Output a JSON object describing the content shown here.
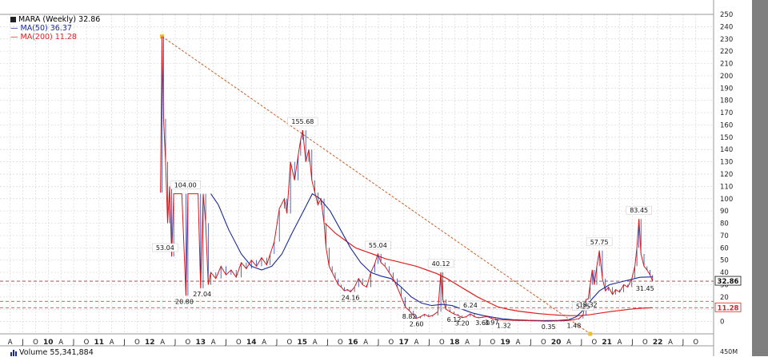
{
  "chart_data": {
    "type": "line",
    "title": "MARA (Weekly) 32.86",
    "legend": [
      {
        "name": "MA(50) 36.37",
        "color": "#1a2a9a"
      },
      {
        "name": "MA(200) 11.28",
        "color": "#e02020"
      }
    ],
    "price_color": "#d41a1a",
    "y_ticks": [
      "0",
      "10",
      "20",
      "30",
      "40",
      "50",
      "60",
      "70",
      "80",
      "90",
      "100",
      "110",
      "120",
      "130",
      "140",
      "150",
      "160",
      "170",
      "180",
      "190",
      "200",
      "210",
      "220",
      "230",
      "240",
      "250"
    ],
    "ylim": [
      -10,
      250
    ],
    "x_ticks": [
      {
        "t": 2009.0,
        "l": "A"
      },
      {
        "t": 2009.25,
        "l": "J"
      },
      {
        "t": 2009.5,
        "l": "O"
      },
      {
        "t": 2009.75,
        "l": "10"
      },
      {
        "t": 2010.0,
        "l": "A"
      },
      {
        "t": 2010.25,
        "l": "J"
      },
      {
        "t": 2010.5,
        "l": "O"
      },
      {
        "t": 2010.75,
        "l": "11"
      },
      {
        "t": 2011.0,
        "l": "A"
      },
      {
        "t": 2011.25,
        "l": "J"
      },
      {
        "t": 2011.5,
        "l": "O"
      },
      {
        "t": 2011.75,
        "l": "12"
      },
      {
        "t": 2012.0,
        "l": "A"
      },
      {
        "t": 2012.25,
        "l": "J"
      },
      {
        "t": 2012.5,
        "l": "O"
      },
      {
        "t": 2012.75,
        "l": "13"
      },
      {
        "t": 2013.0,
        "l": "A"
      },
      {
        "t": 2013.25,
        "l": "J"
      },
      {
        "t": 2013.5,
        "l": "O"
      },
      {
        "t": 2013.75,
        "l": "14"
      },
      {
        "t": 2014.0,
        "l": "A"
      },
      {
        "t": 2014.25,
        "l": "J"
      },
      {
        "t": 2014.5,
        "l": "O"
      },
      {
        "t": 2014.75,
        "l": "15"
      },
      {
        "t": 2015.0,
        "l": "A"
      },
      {
        "t": 2015.25,
        "l": "J"
      },
      {
        "t": 2015.5,
        "l": "O"
      },
      {
        "t": 2015.75,
        "l": "16"
      },
      {
        "t": 2016.0,
        "l": "A"
      },
      {
        "t": 2016.25,
        "l": "J"
      },
      {
        "t": 2016.5,
        "l": "O"
      },
      {
        "t": 2016.75,
        "l": "17"
      },
      {
        "t": 2017.0,
        "l": "A"
      },
      {
        "t": 2017.25,
        "l": "J"
      },
      {
        "t": 2017.5,
        "l": "O"
      },
      {
        "t": 2017.75,
        "l": "18"
      },
      {
        "t": 2018.0,
        "l": "A"
      },
      {
        "t": 2018.25,
        "l": "J"
      },
      {
        "t": 2018.5,
        "l": "O"
      },
      {
        "t": 2018.75,
        "l": "19"
      },
      {
        "t": 2019.0,
        "l": "A"
      },
      {
        "t": 2019.25,
        "l": "J"
      },
      {
        "t": 2019.5,
        "l": "O"
      },
      {
        "t": 2019.75,
        "l": "20"
      },
      {
        "t": 2020.0,
        "l": "A"
      },
      {
        "t": 2020.25,
        "l": "J"
      },
      {
        "t": 2020.5,
        "l": "O"
      },
      {
        "t": 2020.75,
        "l": "21"
      },
      {
        "t": 2021.0,
        "l": "A"
      },
      {
        "t": 2021.25,
        "l": "J"
      },
      {
        "t": 2021.5,
        "l": "O"
      },
      {
        "t": 2021.75,
        "l": "22"
      },
      {
        "t": 2022.0,
        "l": "A"
      },
      {
        "t": 2022.25,
        "l": "J"
      },
      {
        "t": 2022.5,
        "l": "O"
      }
    ],
    "xlim": [
      2008.8,
      2022.85
    ],
    "price": [
      [
        2011.96,
        105
      ],
      [
        2011.99,
        232
      ],
      [
        2012.02,
        165
      ],
      [
        2012.06,
        130
      ],
      [
        2012.1,
        80
      ],
      [
        2012.14,
        110
      ],
      [
        2012.18,
        53
      ],
      [
        2012.22,
        104
      ],
      [
        2012.3,
        104
      ],
      [
        2012.38,
        104
      ],
      [
        2012.46,
        21
      ],
      [
        2012.5,
        104
      ],
      [
        2012.6,
        104
      ],
      [
        2012.7,
        104
      ],
      [
        2012.75,
        27
      ],
      [
        2012.8,
        104
      ],
      [
        2012.85,
        80
      ],
      [
        2012.9,
        30
      ],
      [
        2012.95,
        40
      ],
      [
        2013.05,
        35
      ],
      [
        2013.15,
        45
      ],
      [
        2013.25,
        38
      ],
      [
        2013.35,
        42
      ],
      [
        2013.45,
        36
      ],
      [
        2013.55,
        48
      ],
      [
        2013.65,
        43
      ],
      [
        2013.75,
        50
      ],
      [
        2013.85,
        45
      ],
      [
        2013.95,
        52
      ],
      [
        2014.05,
        46
      ],
      [
        2014.12,
        55
      ],
      [
        2014.2,
        65
      ],
      [
        2014.3,
        92
      ],
      [
        2014.4,
        100
      ],
      [
        2014.45,
        88
      ],
      [
        2014.52,
        130
      ],
      [
        2014.6,
        115
      ],
      [
        2014.67,
        135
      ],
      [
        2014.72,
        148
      ],
      [
        2014.76,
        155.68
      ],
      [
        2014.82,
        130
      ],
      [
        2014.88,
        140
      ],
      [
        2014.94,
        115
      ],
      [
        2015.0,
        105
      ],
      [
        2015.06,
        95
      ],
      [
        2015.12,
        100
      ],
      [
        2015.18,
        80
      ],
      [
        2015.22,
        60
      ],
      [
        2015.28,
        45
      ],
      [
        2015.34,
        40
      ],
      [
        2015.4,
        35
      ],
      [
        2015.46,
        30
      ],
      [
        2015.52,
        28
      ],
      [
        2015.58,
        25
      ],
      [
        2015.64,
        26
      ],
      [
        2015.7,
        24.16
      ],
      [
        2015.78,
        28
      ],
      [
        2015.86,
        35
      ],
      [
        2015.94,
        30
      ],
      [
        2016.02,
        28
      ],
      [
        2016.1,
        40
      ],
      [
        2016.18,
        47
      ],
      [
        2016.24,
        55.04
      ],
      [
        2016.3,
        48
      ],
      [
        2016.38,
        45
      ],
      [
        2016.46,
        40
      ],
      [
        2016.54,
        35
      ],
      [
        2016.62,
        28
      ],
      [
        2016.7,
        20
      ],
      [
        2016.78,
        12
      ],
      [
        2016.86,
        8.82
      ],
      [
        2016.94,
        5
      ],
      [
        2017.0,
        2.6
      ],
      [
        2017.08,
        4
      ],
      [
        2017.16,
        6
      ],
      [
        2017.24,
        4
      ],
      [
        2017.32,
        5
      ],
      [
        2017.42,
        8
      ],
      [
        2017.48,
        40.12
      ],
      [
        2017.52,
        18
      ],
      [
        2017.58,
        10
      ],
      [
        2017.66,
        8
      ],
      [
        2017.74,
        6.12
      ],
      [
        2017.82,
        5
      ],
      [
        2017.9,
        3.2
      ],
      [
        2017.98,
        4
      ],
      [
        2018.06,
        6.24
      ],
      [
        2018.14,
        4
      ],
      [
        2018.22,
        3
      ],
      [
        2018.3,
        3.6
      ],
      [
        2018.4,
        3.97
      ],
      [
        2018.48,
        2.5
      ],
      [
        2018.56,
        1.8
      ],
      [
        2018.64,
        1.5
      ],
      [
        2018.72,
        1.32
      ],
      [
        2018.8,
        1.2
      ],
      [
        2018.9,
        1
      ],
      [
        2019.0,
        0.9
      ],
      [
        2019.1,
        0.8
      ],
      [
        2019.2,
        0.7
      ],
      [
        2019.3,
        0.6
      ],
      [
        2019.4,
        0.5
      ],
      [
        2019.5,
        0.4
      ],
      [
        2019.6,
        0.35
      ],
      [
        2019.7,
        0.45
      ],
      [
        2019.8,
        0.5
      ],
      [
        2019.9,
        0.6
      ],
      [
        2020.0,
        1.0
      ],
      [
        2020.1,
        1.48
      ],
      [
        2020.2,
        2.5
      ],
      [
        2020.28,
        5.25
      ],
      [
        2020.34,
        18
      ],
      [
        2020.38,
        18.32
      ],
      [
        2020.42,
        30
      ],
      [
        2020.46,
        42
      ],
      [
        2020.5,
        30
      ],
      [
        2020.55,
        45
      ],
      [
        2020.6,
        57.75
      ],
      [
        2020.66,
        35
      ],
      [
        2020.72,
        25
      ],
      [
        2020.78,
        28
      ],
      [
        2020.86,
        22
      ],
      [
        2020.92,
        26
      ],
      [
        2021.0,
        24
      ],
      [
        2021.08,
        30
      ],
      [
        2021.16,
        28
      ],
      [
        2021.24,
        35
      ],
      [
        2021.3,
        45
      ],
      [
        2021.34,
        60
      ],
      [
        2021.38,
        83.45
      ],
      [
        2021.42,
        55
      ],
      [
        2021.48,
        45
      ],
      [
        2021.54,
        42
      ],
      [
        2021.6,
        38
      ],
      [
        2021.65,
        32.86
      ]
    ],
    "ma50": [
      [
        2012.95,
        104
      ],
      [
        2013.1,
        95
      ],
      [
        2013.3,
        75
      ],
      [
        2013.55,
        55
      ],
      [
        2013.75,
        45
      ],
      [
        2013.95,
        42
      ],
      [
        2014.15,
        45
      ],
      [
        2014.35,
        55
      ],
      [
        2014.55,
        72
      ],
      [
        2014.75,
        88
      ],
      [
        2014.95,
        104
      ],
      [
        2015.1,
        100
      ],
      [
        2015.3,
        90
      ],
      [
        2015.5,
        75
      ],
      [
        2015.7,
        60
      ],
      [
        2015.9,
        48
      ],
      [
        2016.1,
        40
      ],
      [
        2016.3,
        37
      ],
      [
        2016.5,
        35
      ],
      [
        2016.7,
        28
      ],
      [
        2016.9,
        20
      ],
      [
        2017.1,
        15
      ],
      [
        2017.3,
        13
      ],
      [
        2017.5,
        14
      ],
      [
        2017.7,
        13
      ],
      [
        2017.9,
        10
      ],
      [
        2018.1,
        7
      ],
      [
        2018.3,
        5
      ],
      [
        2018.5,
        3.5
      ],
      [
        2018.7,
        2.2
      ],
      [
        2018.9,
        1.5
      ],
      [
        2019.2,
        1.0
      ],
      [
        2019.5,
        0.8
      ],
      [
        2019.8,
        0.9
      ],
      [
        2020.0,
        1.5
      ],
      [
        2020.15,
        4
      ],
      [
        2020.3,
        10
      ],
      [
        2020.45,
        18
      ],
      [
        2020.6,
        25
      ],
      [
        2020.8,
        30
      ],
      [
        2021.0,
        32
      ],
      [
        2021.2,
        34
      ],
      [
        2021.4,
        36
      ],
      [
        2021.65,
        36.37
      ]
    ],
    "ma200": [
      [
        2015.2,
        80
      ],
      [
        2015.4,
        72
      ],
      [
        2015.6,
        66
      ],
      [
        2015.8,
        60
      ],
      [
        2016.0,
        57
      ],
      [
        2016.2,
        54
      ],
      [
        2016.4,
        51
      ],
      [
        2016.6,
        49
      ],
      [
        2016.8,
        47
      ],
      [
        2017.0,
        45
      ],
      [
        2017.2,
        42
      ],
      [
        2017.4,
        39
      ],
      [
        2017.6,
        35
      ],
      [
        2017.8,
        30
      ],
      [
        2018.0,
        25
      ],
      [
        2018.2,
        20
      ],
      [
        2018.4,
        16
      ],
      [
        2018.6,
        12
      ],
      [
        2018.8,
        10
      ],
      [
        2019.0,
        8.5
      ],
      [
        2019.2,
        7.5
      ],
      [
        2019.4,
        6.5
      ],
      [
        2019.6,
        5.8
      ],
      [
        2019.8,
        5.2
      ],
      [
        2020.0,
        4.8
      ],
      [
        2020.2,
        4.8
      ],
      [
        2020.4,
        5.5
      ],
      [
        2020.6,
        6.8
      ],
      [
        2020.8,
        8
      ],
      [
        2021.0,
        9
      ],
      [
        2021.2,
        10
      ],
      [
        2021.4,
        10.8
      ],
      [
        2021.65,
        11.28
      ]
    ],
    "trendline": [
      [
        2011.99,
        232
      ],
      [
        2020.42,
        -10
      ]
    ],
    "price_levels": [
      32.86,
      16.5,
      11.28
    ],
    "annotations": [
      {
        "x": 2012.05,
        "y": 53.04,
        "text": "53.04",
        "box": true
      },
      {
        "x": 2012.45,
        "y": 104,
        "text": "104.00",
        "box": true
      },
      {
        "x": 2012.43,
        "y": 20.8,
        "text": "20.80",
        "box": false
      },
      {
        "x": 2012.78,
        "y": 27.04,
        "text": "27.04",
        "box": false
      },
      {
        "x": 2014.76,
        "y": 155.68,
        "text": "155.68",
        "box": true
      },
      {
        "x": 2015.7,
        "y": 24.16,
        "text": "24.16",
        "box": false
      },
      {
        "x": 2016.24,
        "y": 55.04,
        "text": "55.04",
        "box": true
      },
      {
        "x": 2016.86,
        "y": 8.82,
        "text": "8.82",
        "box": false
      },
      {
        "x": 2017.0,
        "y": 2.6,
        "text": "2.60",
        "box": false
      },
      {
        "x": 2017.48,
        "y": 40.12,
        "text": "40.12",
        "box": true
      },
      {
        "x": 2017.74,
        "y": 6.12,
        "text": "6.12",
        "box": false
      },
      {
        "x": 2017.9,
        "y": 3.2,
        "text": "3.20",
        "box": false
      },
      {
        "x": 2018.06,
        "y": 6.24,
        "text": "6.24",
        "box": true
      },
      {
        "x": 2018.3,
        "y": 3.6,
        "text": "3.60",
        "box": false
      },
      {
        "x": 2018.48,
        "y": 3.97,
        "text": "3.97",
        "box": false
      },
      {
        "x": 2018.72,
        "y": 1.32,
        "text": "1.32",
        "box": false
      },
      {
        "x": 2019.6,
        "y": 0.35,
        "text": "0.35",
        "box": false
      },
      {
        "x": 2020.1,
        "y": 1.48,
        "text": "1.48",
        "box": false
      },
      {
        "x": 2020.28,
        "y": 5.25,
        "text": "5.25",
        "box": true
      },
      {
        "x": 2020.38,
        "y": 18.32,
        "text": "18.32",
        "box": false
      },
      {
        "x": 2020.6,
        "y": 57.75,
        "text": "57.75",
        "box": true
      },
      {
        "x": 2021.38,
        "y": 83.45,
        "text": "83.45",
        "box": true
      },
      {
        "x": 2021.5,
        "y": 31.45,
        "text": "31.45",
        "box": false
      }
    ],
    "right_labels": [
      {
        "y": 32.86,
        "text": "32.86",
        "bg": "#ffffff",
        "fg": "#111111",
        "border": "#111111"
      },
      {
        "y": 11.28,
        "text": "11.28",
        "bg": "#ffffff",
        "fg": "#e02020",
        "border": "#e02020"
      }
    ],
    "volume_label": "Volume 55,341,884",
    "volume_tick": "450M",
    "colors": {
      "plot_bg": "#ffffff",
      "grid": "#d8d8d8",
      "frame": "#999999",
      "scroll": "#7f7f7f",
      "trend": "#c8602a",
      "ma50": "#1a2a9a",
      "ma200": "#e02020"
    }
  }
}
